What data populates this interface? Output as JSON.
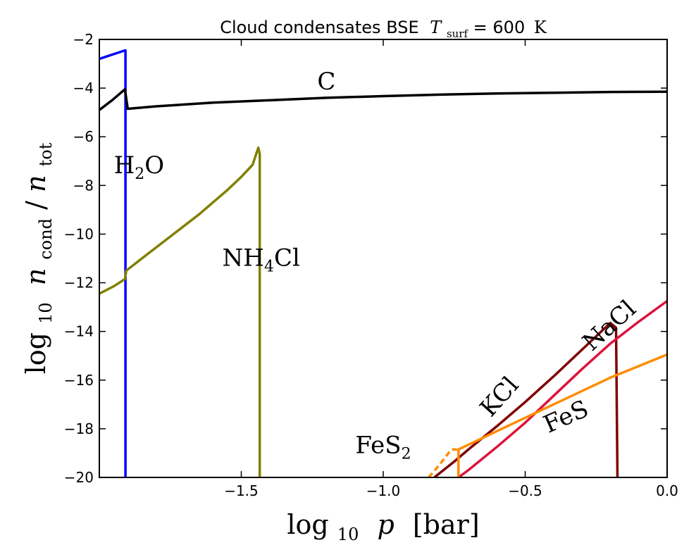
{
  "chart_data": {
    "type": "line",
    "title": {
      "text": "Cloud condensates BSE",
      "math_var": "T",
      "math_sub": "surf",
      "math_eq": " = 600",
      "math_unit": "K"
    },
    "xlabel": {
      "pre": "log",
      "sub": "10",
      "var": "p",
      "unit": "[bar]"
    },
    "ylabel": {
      "pre": "log",
      "sub": "10",
      "var_num": "n",
      "sub_num": "cond",
      "slash": "/",
      "var_den": "n",
      "sub_den": "tot"
    },
    "xlim": [
      -2.0,
      0.0
    ],
    "ylim": [
      -20,
      -2
    ],
    "xticks": [
      {
        "value": -1.5,
        "label": "−1.5"
      },
      {
        "value": -1.0,
        "label": "−1.0"
      },
      {
        "value": -0.5,
        "label": "−0.5"
      },
      {
        "value": 0.0,
        "label": "0.0"
      }
    ],
    "yticks": [
      {
        "value": -2,
        "label": "−2"
      },
      {
        "value": -4,
        "label": "−4"
      },
      {
        "value": -6,
        "label": "−6"
      },
      {
        "value": -8,
        "label": "−8"
      },
      {
        "value": -10,
        "label": "−10"
      },
      {
        "value": -12,
        "label": "−12"
      },
      {
        "value": -14,
        "label": "−14"
      },
      {
        "value": -16,
        "label": "−16"
      },
      {
        "value": -18,
        "label": "−18"
      },
      {
        "value": -20,
        "label": "−20"
      }
    ],
    "series": [
      {
        "name": "H2O",
        "color": "#0000ff",
        "dashed": false,
        "points": [
          [
            -2.0,
            -2.8
          ],
          [
            -1.91,
            -2.45
          ],
          [
            -1.908,
            -2.45
          ],
          [
            -1.908,
            -20
          ]
        ]
      },
      {
        "name": "C",
        "color": "#000000",
        "dashed": false,
        "points": [
          [
            -2.0,
            -4.9
          ],
          [
            -1.955,
            -4.5
          ],
          [
            -1.91,
            -4.05
          ],
          [
            -1.9,
            -4.85
          ],
          [
            -1.8,
            -4.75
          ],
          [
            -1.6,
            -4.6
          ],
          [
            -1.4,
            -4.5
          ],
          [
            -1.2,
            -4.4
          ],
          [
            -1.0,
            -4.33
          ],
          [
            -0.8,
            -4.27
          ],
          [
            -0.6,
            -4.22
          ],
          [
            -0.4,
            -4.19
          ],
          [
            -0.2,
            -4.16
          ],
          [
            0.0,
            -4.15
          ]
        ]
      },
      {
        "name": "NH4Cl",
        "color": "#808000",
        "dashed": false,
        "points": [
          [
            -2.0,
            -12.45
          ],
          [
            -1.95,
            -12.15
          ],
          [
            -1.91,
            -11.85
          ],
          [
            -1.905,
            -11.5
          ],
          [
            -1.85,
            -11.0
          ],
          [
            -1.75,
            -10.1
          ],
          [
            -1.65,
            -9.2
          ],
          [
            -1.55,
            -8.2
          ],
          [
            -1.5,
            -7.65
          ],
          [
            -1.46,
            -7.15
          ],
          [
            -1.44,
            -6.45
          ],
          [
            -1.435,
            -6.7
          ],
          [
            -1.435,
            -20
          ]
        ]
      },
      {
        "name": "KCl",
        "color": "#7f0000",
        "dashed": false,
        "points": [
          [
            -0.82,
            -20
          ],
          [
            -0.75,
            -19.35
          ],
          [
            -0.7,
            -18.85
          ],
          [
            -0.6,
            -17.9
          ],
          [
            -0.5,
            -16.9
          ],
          [
            -0.4,
            -15.85
          ],
          [
            -0.3,
            -14.75
          ],
          [
            -0.2,
            -13.65
          ],
          [
            -0.18,
            -13.85
          ],
          [
            -0.175,
            -20
          ]
        ]
      },
      {
        "name": "NaCl",
        "color": "#dc143c",
        "dashed": false,
        "points": [
          [
            -0.735,
            -20
          ],
          [
            -0.7,
            -19.7
          ],
          [
            -0.6,
            -18.75
          ],
          [
            -0.5,
            -17.75
          ],
          [
            -0.4,
            -16.65
          ],
          [
            -0.3,
            -15.55
          ],
          [
            -0.2,
            -14.5
          ],
          [
            -0.1,
            -13.6
          ],
          [
            0.0,
            -12.75
          ]
        ]
      },
      {
        "name": "FeS",
        "color": "#ff8c00",
        "dashed": false,
        "points": [
          [
            -0.735,
            -20
          ],
          [
            -0.735,
            -18.85
          ],
          [
            -0.6,
            -18.1
          ],
          [
            -0.4,
            -17.0
          ],
          [
            -0.2,
            -15.9
          ],
          [
            0.0,
            -14.95
          ]
        ]
      },
      {
        "name": "FeS2",
        "color": "#ff8c00",
        "dashed": true,
        "points": [
          [
            -0.84,
            -20
          ],
          [
            -0.8,
            -19.45
          ],
          [
            -0.76,
            -18.85
          ],
          [
            -0.74,
            -18.85
          ]
        ]
      }
    ],
    "annotations": [
      {
        "text": "C",
        "sub": "",
        "tail": "",
        "x": -1.2,
        "y": -4.05,
        "rotate": 0
      },
      {
        "text": "H",
        "sub": "2",
        "tail": "O",
        "x": -1.86,
        "y": -7.5,
        "rotate": 0
      },
      {
        "text": "NH",
        "sub": "4",
        "tail": "Cl",
        "x": -1.43,
        "y": -11.3,
        "rotate": 0
      },
      {
        "text": "KCl",
        "sub": "",
        "tail": "",
        "x": -0.57,
        "y": -16.9,
        "rotate": -48
      },
      {
        "text": "NaCl",
        "sub": "",
        "tail": "",
        "x": -0.185,
        "y": -14.0,
        "rotate": -42
      },
      {
        "text": "FeS",
        "sub": "",
        "tail": "",
        "x": -0.345,
        "y": -17.8,
        "rotate": -24
      },
      {
        "text": "FeS",
        "sub": "2",
        "tail": "",
        "x": -1.0,
        "y": -19.0,
        "rotate": 0
      }
    ]
  }
}
